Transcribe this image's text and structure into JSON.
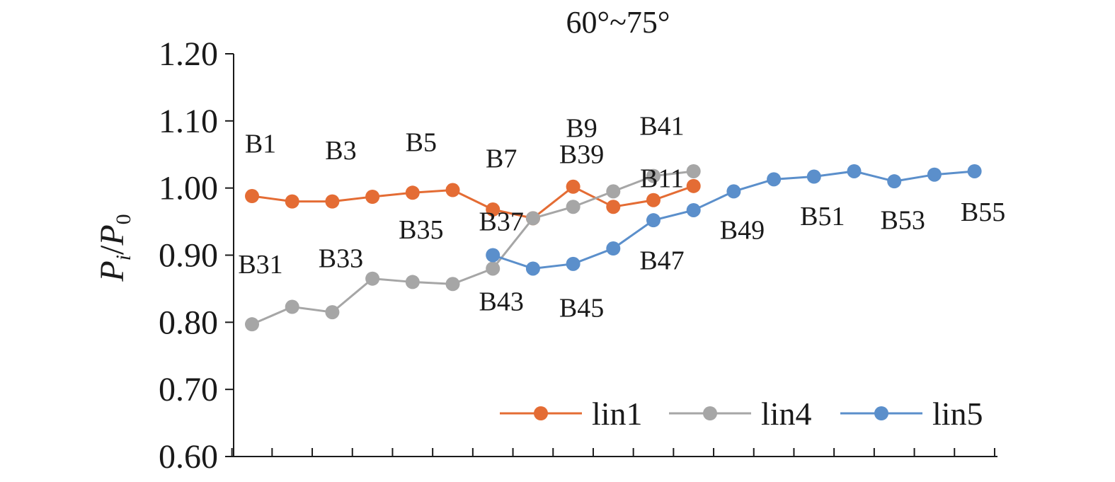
{
  "chart_data": {
    "type": "line",
    "title": "60°~75°",
    "ylabel": {
      "main": "P",
      "sub1": "i",
      "sep": "/",
      "main2": "P",
      "sub2": "0"
    },
    "ylim": [
      0.6,
      1.2
    ],
    "yticks": [
      "0.60",
      "0.70",
      "0.80",
      "0.90",
      "1.00",
      "1.10",
      "1.20"
    ],
    "x_count": 19,
    "grid": false,
    "legend_position": "bottom-right",
    "series": [
      {
        "name": "lin1",
        "color": "#E46C34",
        "x": [
          0,
          1,
          2,
          3,
          4,
          5,
          6,
          7,
          8,
          9,
          10,
          11
        ],
        "values": [
          0.988,
          0.98,
          0.98,
          0.987,
          0.993,
          0.997,
          0.968,
          0.955,
          1.002,
          0.972,
          0.982,
          1.003
        ]
      },
      {
        "name": "lin4",
        "color": "#A6A6A6",
        "x": [
          0,
          1,
          2,
          3,
          4,
          5,
          6,
          7,
          8,
          9,
          10,
          11
        ],
        "values": [
          0.797,
          0.823,
          0.815,
          0.865,
          0.86,
          0.857,
          0.88,
          0.955,
          0.972,
          0.995,
          1.018,
          1.025
        ]
      },
      {
        "name": "lin5",
        "color": "#5B8FCB",
        "x": [
          6,
          7,
          8,
          9,
          10,
          11,
          12,
          13,
          14,
          15,
          16,
          17,
          18
        ],
        "values": [
          0.9,
          0.88,
          0.887,
          0.91,
          0.952,
          0.967,
          0.995,
          1.013,
          1.017,
          1.025,
          1.01,
          1.02,
          1.025
        ]
      }
    ],
    "annotations": [
      {
        "text": "B1",
        "x": 0,
        "y": 1.053
      },
      {
        "text": "B3",
        "x": 2,
        "y": 1.043
      },
      {
        "text": "B5",
        "x": 4,
        "y": 1.055
      },
      {
        "text": "B7",
        "x": 6,
        "y": 1.031
      },
      {
        "text": "B9",
        "x": 8,
        "y": 1.076
      },
      {
        "text": "B39",
        "x": 8,
        "y": 1.037
      },
      {
        "text": "B41",
        "x": 10,
        "y": 1.079
      },
      {
        "text": "B11",
        "x": 10,
        "y": 1.001
      },
      {
        "text": "B35",
        "x": 4,
        "y": 0.925
      },
      {
        "text": "B37",
        "x": 6,
        "y": 0.937
      },
      {
        "text": "B31",
        "x": 0,
        "y": 0.873
      },
      {
        "text": "B33",
        "x": 2,
        "y": 0.882
      },
      {
        "text": "B43",
        "x": 6,
        "y": 0.818
      },
      {
        "text": "B45",
        "x": 8,
        "y": 0.808
      },
      {
        "text": "B47",
        "x": 10,
        "y": 0.879
      },
      {
        "text": "B49",
        "x": 12,
        "y": 0.924
      },
      {
        "text": "B51",
        "x": 14,
        "y": 0.945
      },
      {
        "text": "B53",
        "x": 16,
        "y": 0.939
      },
      {
        "text": "B55",
        "x": 18,
        "y": 0.951
      }
    ]
  }
}
